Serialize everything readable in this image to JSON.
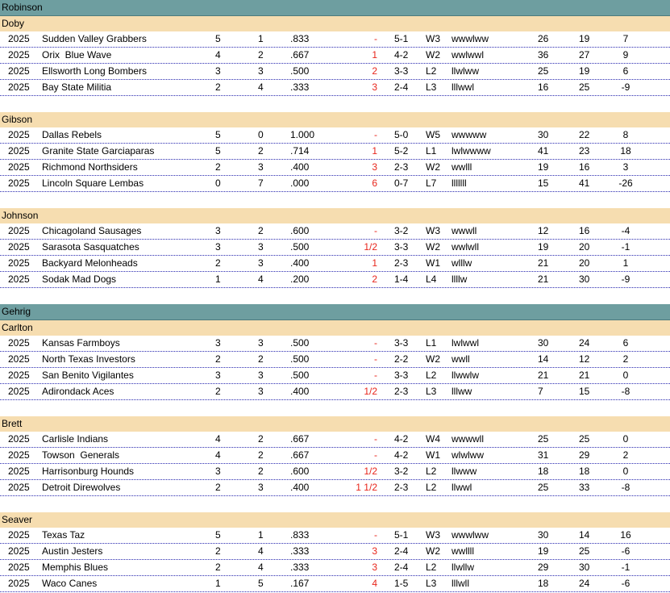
{
  "leagues": [
    {
      "name": "Robinson",
      "divisions": [
        {
          "name": "Doby",
          "rows": [
            {
              "year": "2025",
              "team": "Sudden Valley Grabbers",
              "w": "5",
              "l": "1",
              "pct": ".833",
              "gb": "-",
              "rec": "5-1",
              "streak": "W3",
              "last": "wwwlww",
              "rs": "26",
              "ra": "19",
              "diff": "7"
            },
            {
              "year": "2025",
              "team": "Orix  Blue Wave",
              "w": "4",
              "l": "2",
              "pct": ".667",
              "gb": "1",
              "rec": "4-2",
              "streak": "W2",
              "last": "wwlwwl",
              "rs": "36",
              "ra": "27",
              "diff": "9"
            },
            {
              "year": "2025",
              "team": "Ellsworth Long Bombers",
              "w": "3",
              "l": "3",
              "pct": ".500",
              "gb": "2",
              "rec": "3-3",
              "streak": "L2",
              "last": "llwlww",
              "rs": "25",
              "ra": "19",
              "diff": "6"
            },
            {
              "year": "2025",
              "team": "Bay State Militia",
              "w": "2",
              "l": "4",
              "pct": ".333",
              "gb": "3",
              "rec": "2-4",
              "streak": "L3",
              "last": "lllwwl",
              "rs": "16",
              "ra": "25",
              "diff": "-9"
            }
          ]
        },
        {
          "name": "Gibson",
          "rows": [
            {
              "year": "2025",
              "team": "Dallas Rebels",
              "w": "5",
              "l": "0",
              "pct": "1.000",
              "gb": "-",
              "rec": "5-0",
              "streak": "W5",
              "last": "wwwww",
              "rs": "30",
              "ra": "22",
              "diff": "8"
            },
            {
              "year": "2025",
              "team": "Granite State Garciaparas",
              "w": "5",
              "l": "2",
              "pct": ".714",
              "gb": "1",
              "rec": "5-2",
              "streak": "L1",
              "last": "lwlwwww",
              "rs": "41",
              "ra": "23",
              "diff": "18"
            },
            {
              "year": "2025",
              "team": "Richmond Northsiders",
              "w": "2",
              "l": "3",
              "pct": ".400",
              "gb": "3",
              "rec": "2-3",
              "streak": "W2",
              "last": "wwlll",
              "rs": "19",
              "ra": "16",
              "diff": "3"
            },
            {
              "year": "2025",
              "team": "Lincoln Square Lembas",
              "w": "0",
              "l": "7",
              "pct": ".000",
              "gb": "6",
              "rec": "0-7",
              "streak": "L7",
              "last": "lllllll",
              "rs": "15",
              "ra": "41",
              "diff": "-26"
            }
          ]
        },
        {
          "name": "Johnson",
          "rows": [
            {
              "year": "2025",
              "team": "Chicagoland Sausages",
              "w": "3",
              "l": "2",
              "pct": ".600",
              "gb": "-",
              "rec": "3-2",
              "streak": "W3",
              "last": "wwwll",
              "rs": "12",
              "ra": "16",
              "diff": "-4"
            },
            {
              "year": "2025",
              "team": "Sarasota Sasquatches",
              "w": "3",
              "l": "3",
              "pct": ".500",
              "gb": "1/2",
              "rec": "3-3",
              "streak": "W2",
              "last": "wwlwll",
              "rs": "19",
              "ra": "20",
              "diff": "-1"
            },
            {
              "year": "2025",
              "team": "Backyard Melonheads",
              "w": "2",
              "l": "3",
              "pct": ".400",
              "gb": "1",
              "rec": "2-3",
              "streak": "W1",
              "last": "wlllw",
              "rs": "21",
              "ra": "20",
              "diff": "1"
            },
            {
              "year": "2025",
              "team": "Sodak Mad Dogs",
              "w": "1",
              "l": "4",
              "pct": ".200",
              "gb": "2",
              "rec": "1-4",
              "streak": "L4",
              "last": "llllw",
              "rs": "21",
              "ra": "30",
              "diff": "-9"
            }
          ]
        }
      ]
    },
    {
      "name": "Gehrig",
      "divisions": [
        {
          "name": "Carlton",
          "rows": [
            {
              "year": "2025",
              "team": "Kansas Farmboys",
              "w": "3",
              "l": "3",
              "pct": ".500",
              "gb": "-",
              "rec": "3-3",
              "streak": "L1",
              "last": "lwlwwl",
              "rs": "30",
              "ra": "24",
              "diff": "6"
            },
            {
              "year": "2025",
              "team": "North Texas Investors",
              "w": "2",
              "l": "2",
              "pct": ".500",
              "gb": "-",
              "rec": "2-2",
              "streak": "W2",
              "last": "wwll",
              "rs": "14",
              "ra": "12",
              "diff": "2"
            },
            {
              "year": "2025",
              "team": "San Benito Vigilantes",
              "w": "3",
              "l": "3",
              "pct": ".500",
              "gb": "-",
              "rec": "3-3",
              "streak": "L2",
              "last": "llwwlw",
              "rs": "21",
              "ra": "21",
              "diff": "0"
            },
            {
              "year": "2025",
              "team": "Adirondack Aces",
              "w": "2",
              "l": "3",
              "pct": ".400",
              "gb": "1/2",
              "rec": "2-3",
              "streak": "L3",
              "last": "lllww",
              "rs": "7",
              "ra": "15",
              "diff": "-8"
            }
          ]
        },
        {
          "name": "Brett",
          "rows": [
            {
              "year": "2025",
              "team": "Carlisle Indians",
              "w": "4",
              "l": "2",
              "pct": ".667",
              "gb": "-",
              "rec": "4-2",
              "streak": "W4",
              "last": "wwwwll",
              "rs": "25",
              "ra": "25",
              "diff": "0"
            },
            {
              "year": "2025",
              "team": "Towson  Generals",
              "w": "4",
              "l": "2",
              "pct": ".667",
              "gb": "-",
              "rec": "4-2",
              "streak": "W1",
              "last": "wlwlww",
              "rs": "31",
              "ra": "29",
              "diff": "2"
            },
            {
              "year": "2025",
              "team": "Harrisonburg Hounds",
              "w": "3",
              "l": "2",
              "pct": ".600",
              "gb": "1/2",
              "rec": "3-2",
              "streak": "L2",
              "last": "llwww",
              "rs": "18",
              "ra": "18",
              "diff": "0"
            },
            {
              "year": "2025",
              "team": "Detroit Direwolves",
              "w": "2",
              "l": "3",
              "pct": ".400",
              "gb": "1 1/2",
              "rec": "2-3",
              "streak": "L2",
              "last": "llwwl",
              "rs": "25",
              "ra": "33",
              "diff": "-8"
            }
          ]
        },
        {
          "name": "Seaver",
          "rows": [
            {
              "year": "2025",
              "team": "Texas Taz",
              "w": "5",
              "l": "1",
              "pct": ".833",
              "gb": "-",
              "rec": "5-1",
              "streak": "W3",
              "last": "wwwlww",
              "rs": "30",
              "ra": "14",
              "diff": "16"
            },
            {
              "year": "2025",
              "team": "Austin Jesters",
              "w": "2",
              "l": "4",
              "pct": ".333",
              "gb": "3",
              "rec": "2-4",
              "streak": "W2",
              "last": "wwllll",
              "rs": "19",
              "ra": "25",
              "diff": "-6"
            },
            {
              "year": "2025",
              "team": "Memphis Blues",
              "w": "2",
              "l": "4",
              "pct": ".333",
              "gb": "3",
              "rec": "2-4",
              "streak": "L2",
              "last": "llwllw",
              "rs": "29",
              "ra": "30",
              "diff": "-1"
            },
            {
              "year": "2025",
              "team": "Waco Canes",
              "w": "1",
              "l": "5",
              "pct": ".167",
              "gb": "4",
              "rec": "1-5",
              "streak": "L3",
              "last": "lllwll",
              "rs": "18",
              "ra": "24",
              "diff": "-6"
            }
          ]
        }
      ]
    }
  ]
}
